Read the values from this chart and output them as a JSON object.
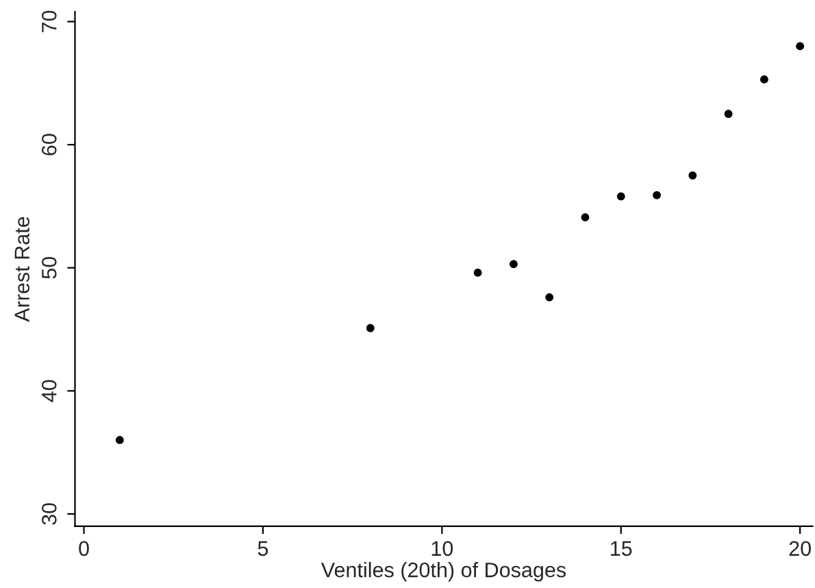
{
  "chart_data": {
    "type": "scatter",
    "xlabel": "Ventiles (20th) of Dosages",
    "ylabel": "Arrest Rate",
    "x": [
      1,
      8,
      11,
      12,
      13,
      14,
      15,
      16,
      17,
      18,
      19,
      20
    ],
    "values": [
      36.0,
      45.1,
      49.6,
      50.3,
      47.6,
      54.1,
      55.8,
      55.9,
      57.5,
      62.5,
      65.3,
      68.0
    ],
    "color": "#000000",
    "marker": "circle",
    "xlim": [
      -0.25,
      20.35
    ],
    "ylim": [
      29,
      70.8
    ],
    "xticks": [
      0,
      5,
      10,
      15,
      20
    ],
    "yticks": [
      30,
      40,
      50,
      60,
      70
    ],
    "grid": false,
    "legend": false
  }
}
